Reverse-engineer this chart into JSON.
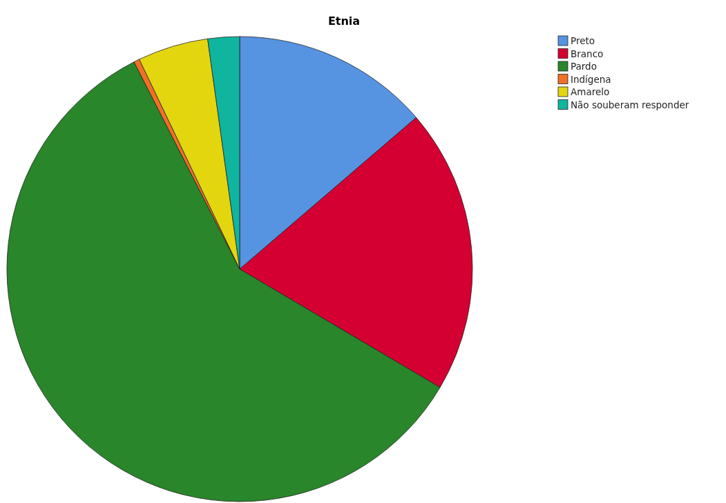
{
  "chart_data": {
    "type": "pie",
    "title": "Etnia",
    "categories": [
      "Preto",
      "Branco",
      "Pardo",
      "Indígena",
      "Amarelo",
      "Não souberam responder"
    ],
    "values": [
      13.7,
      19.8,
      59.0,
      0.4,
      4.9,
      2.2
    ],
    "colors": [
      "#5694e2",
      "#d50032",
      "#29862a",
      "#f07028",
      "#e3d60f",
      "#10b5a0"
    ],
    "legend": "top right"
  }
}
